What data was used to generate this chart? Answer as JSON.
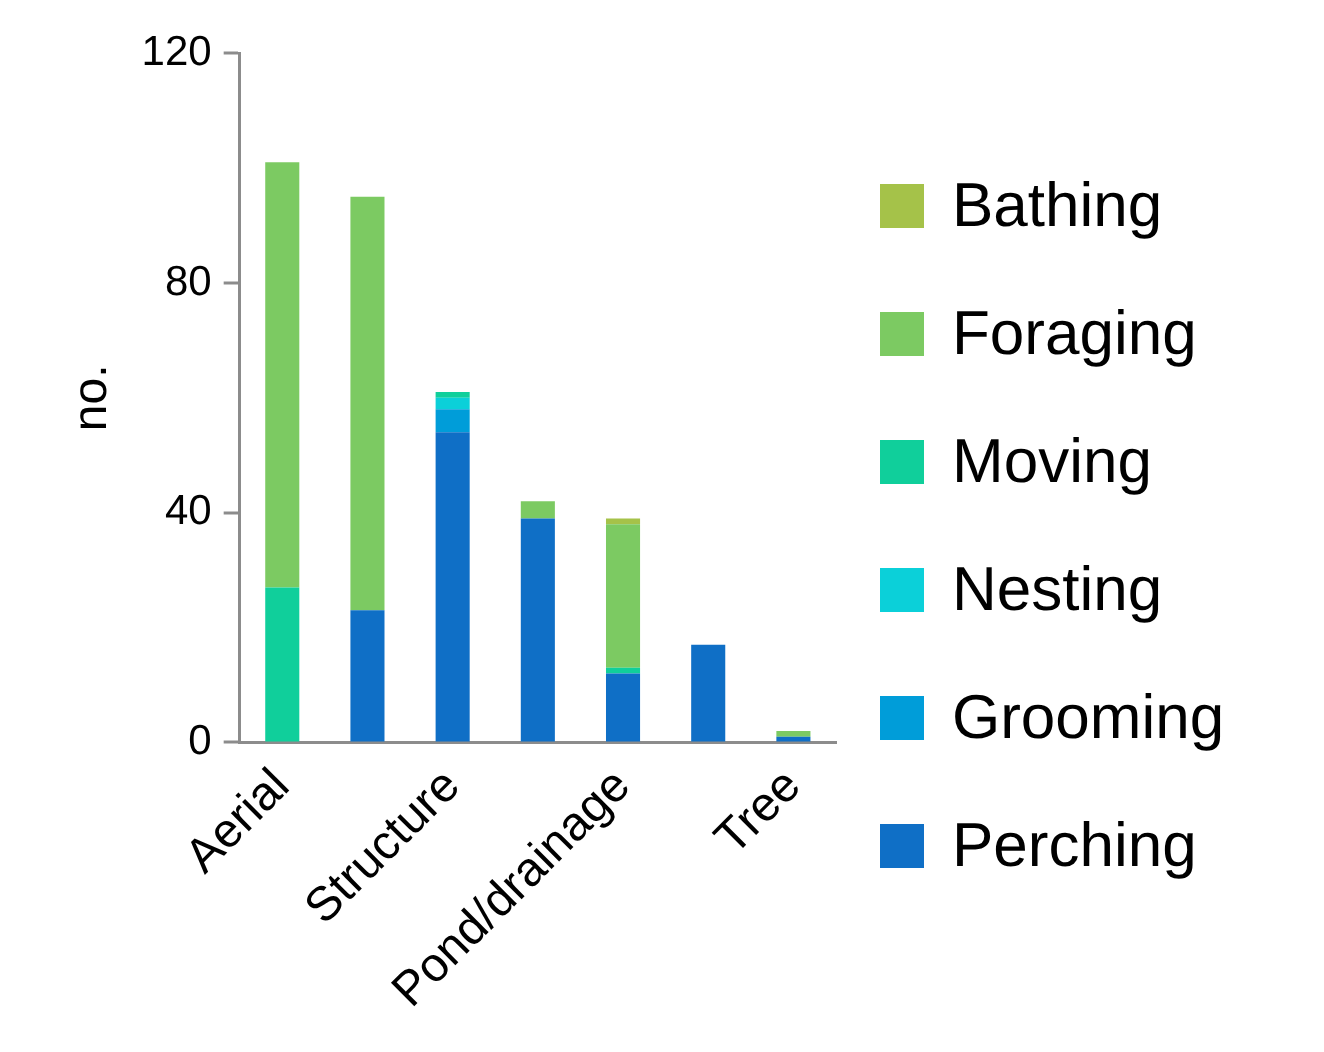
{
  "chart_data": {
    "type": "bar",
    "stacked": true,
    "ylabel": "no.",
    "categories": [
      "Aerial",
      null,
      "Structure",
      null,
      "Pond/drainage",
      null,
      "Tree"
    ],
    "ylim": [
      0,
      120
    ],
    "yticks": [
      0,
      40,
      80,
      120
    ],
    "grid": false,
    "legend": "right",
    "series": [
      {
        "name": "Perching",
        "color": "#0f6fc6",
        "values": [
          0,
          23,
          54,
          39,
          12,
          17,
          1
        ]
      },
      {
        "name": "Grooming",
        "color": "#009dd9",
        "values": [
          0,
          0,
          4,
          0,
          0,
          0,
          0
        ]
      },
      {
        "name": "Nesting",
        "color": "#0bd0d9",
        "values": [
          0,
          0,
          2,
          0,
          0,
          0,
          0
        ]
      },
      {
        "name": "Moving",
        "color": "#10cf9b",
        "values": [
          27,
          0,
          1,
          0,
          1,
          0,
          0
        ]
      },
      {
        "name": "Foraging",
        "color": "#7cca62",
        "values": [
          74,
          72,
          0,
          3,
          25,
          0,
          1
        ]
      },
      {
        "name": "Bathing",
        "color": "#a5c249",
        "values": [
          0,
          0,
          0,
          0,
          1,
          0,
          0
        ]
      }
    ]
  }
}
